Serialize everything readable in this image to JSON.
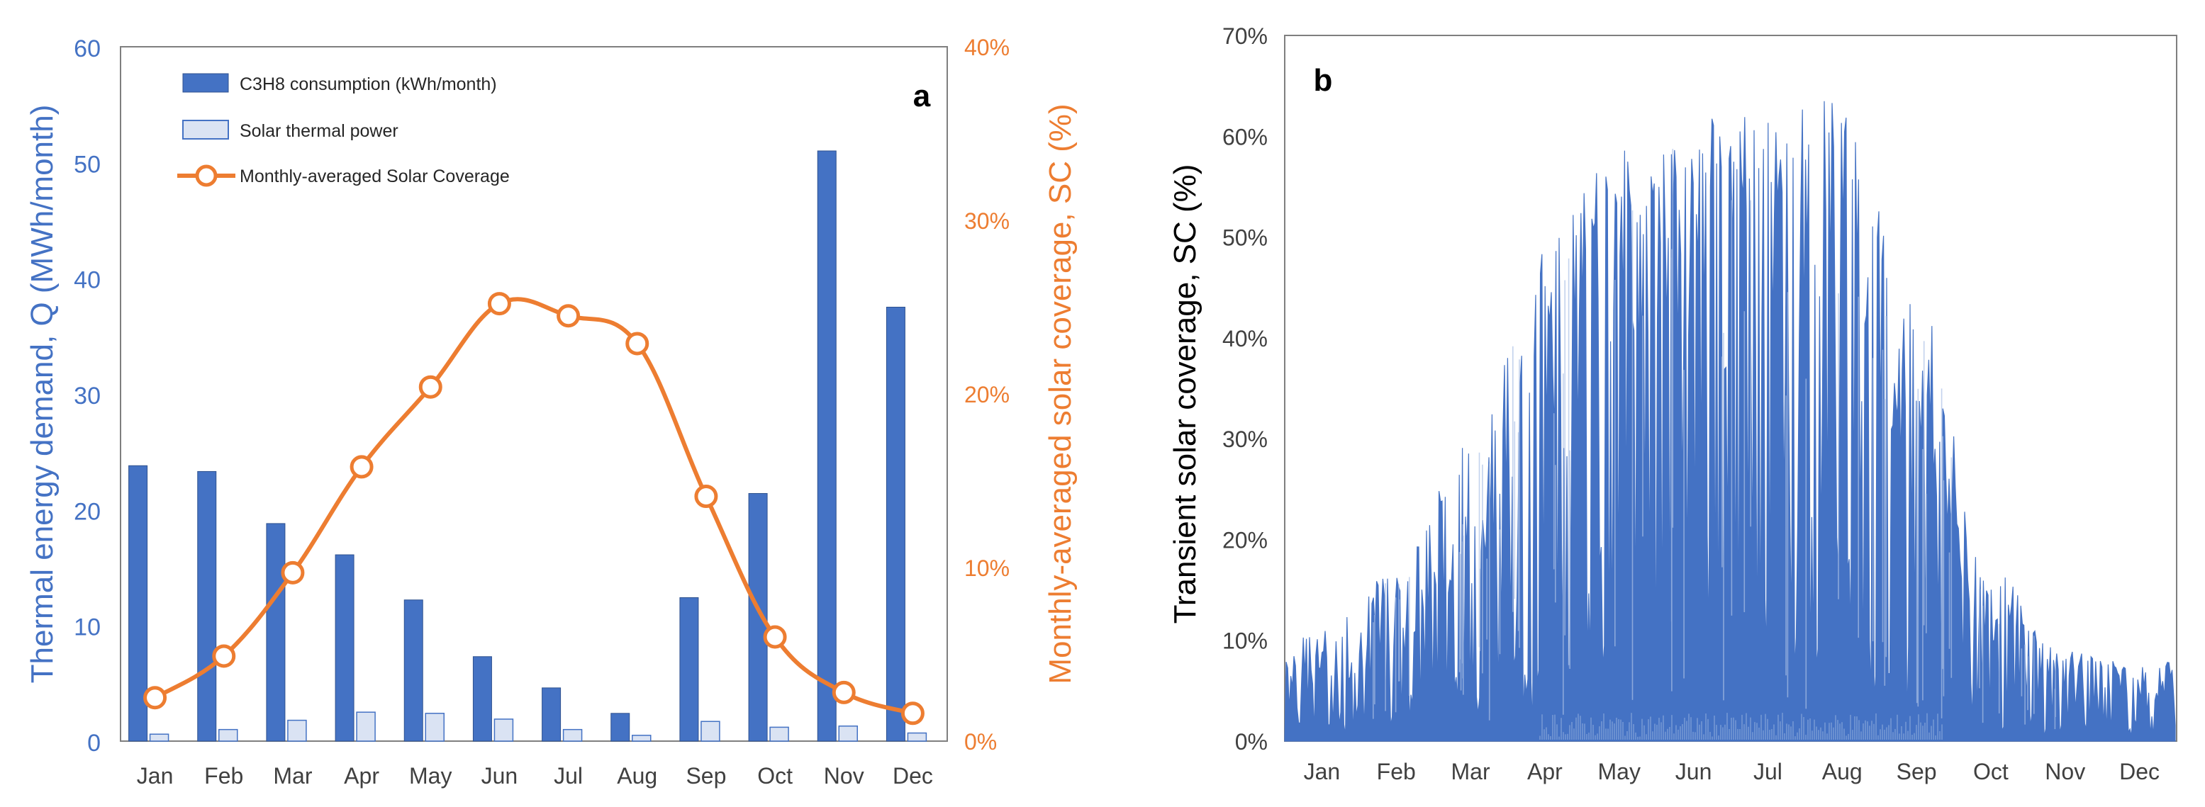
{
  "colors": {
    "bar_dark": "#4472C4",
    "bar_light": "#DAE3F3",
    "bar_light_edge": "#4472C4",
    "line_orange": "#ED7D31",
    "left_axis_text": "#4472C4",
    "right_axis_text": "#ED7D31",
    "tick_text": "#404040",
    "axis_line": "#595959",
    "area_fill": "#4472C4",
    "area_light": "#A9BFE6"
  },
  "chart_data": [
    {
      "type": "bar",
      "panel_label": "a",
      "categories": [
        "Jan",
        "Feb",
        "Mar",
        "Apr",
        "May",
        "Jun",
        "Jul",
        "Aug",
        "Sep",
        "Oct",
        "Nov",
        "Dec"
      ],
      "series": [
        {
          "name": "C3H8 consumption (kWh/month)",
          "kind": "bar",
          "axis": "left",
          "values": [
            23.8,
            23.3,
            18.8,
            16.1,
            12.2,
            7.3,
            4.6,
            2.4,
            12.4,
            21.4,
            51.0,
            37.5
          ]
        },
        {
          "name": "Solar thermal power",
          "kind": "bar",
          "axis": "left",
          "values": [
            0.6,
            1.0,
            1.8,
            2.5,
            2.4,
            1.9,
            1.0,
            0.5,
            1.7,
            1.2,
            1.3,
            0.7
          ]
        },
        {
          "name": "Monthly-averaged Solar Coverage",
          "kind": "line",
          "axis": "right",
          "values": [
            2.5,
            4.9,
            9.7,
            15.8,
            20.4,
            25.2,
            24.5,
            22.9,
            14.1,
            6.0,
            2.8,
            1.6
          ]
        }
      ],
      "ylabel": "Thermal energy demand, Q (MWh/month)",
      "ylabel_right": "Monthly-averaged solar coverage, SC (%)",
      "ylim": [
        0,
        60
      ],
      "yticks": [
        "0",
        "10",
        "20",
        "30",
        "40",
        "50",
        "60"
      ],
      "ylim_right": [
        0,
        40
      ],
      "yticks_right": [
        "0%",
        "10%",
        "20%",
        "30%",
        "40%"
      ],
      "legend_position": "top-left",
      "grid": false
    },
    {
      "type": "area",
      "panel_label": "b",
      "categories": [
        "Jan",
        "Feb",
        "Mar",
        "Apr",
        "May",
        "Jun",
        "Jul",
        "Aug",
        "Sep",
        "Oct",
        "Nov",
        "Dec"
      ],
      "envelope_peak_percent": [
        11,
        17,
        30,
        49,
        60,
        63,
        62,
        64,
        44,
        17,
        9,
        8
      ],
      "envelope_typical_percent": [
        5,
        8,
        14,
        24,
        34,
        37,
        36,
        35,
        26,
        9,
        5,
        4
      ],
      "ylabel": "Transient solar coverage, SC (%)",
      "ylim": [
        0,
        70
      ],
      "yticks": [
        "0%",
        "10%",
        "20%",
        "30%",
        "40%",
        "50%",
        "60%",
        "70%"
      ],
      "grid": false
    }
  ]
}
